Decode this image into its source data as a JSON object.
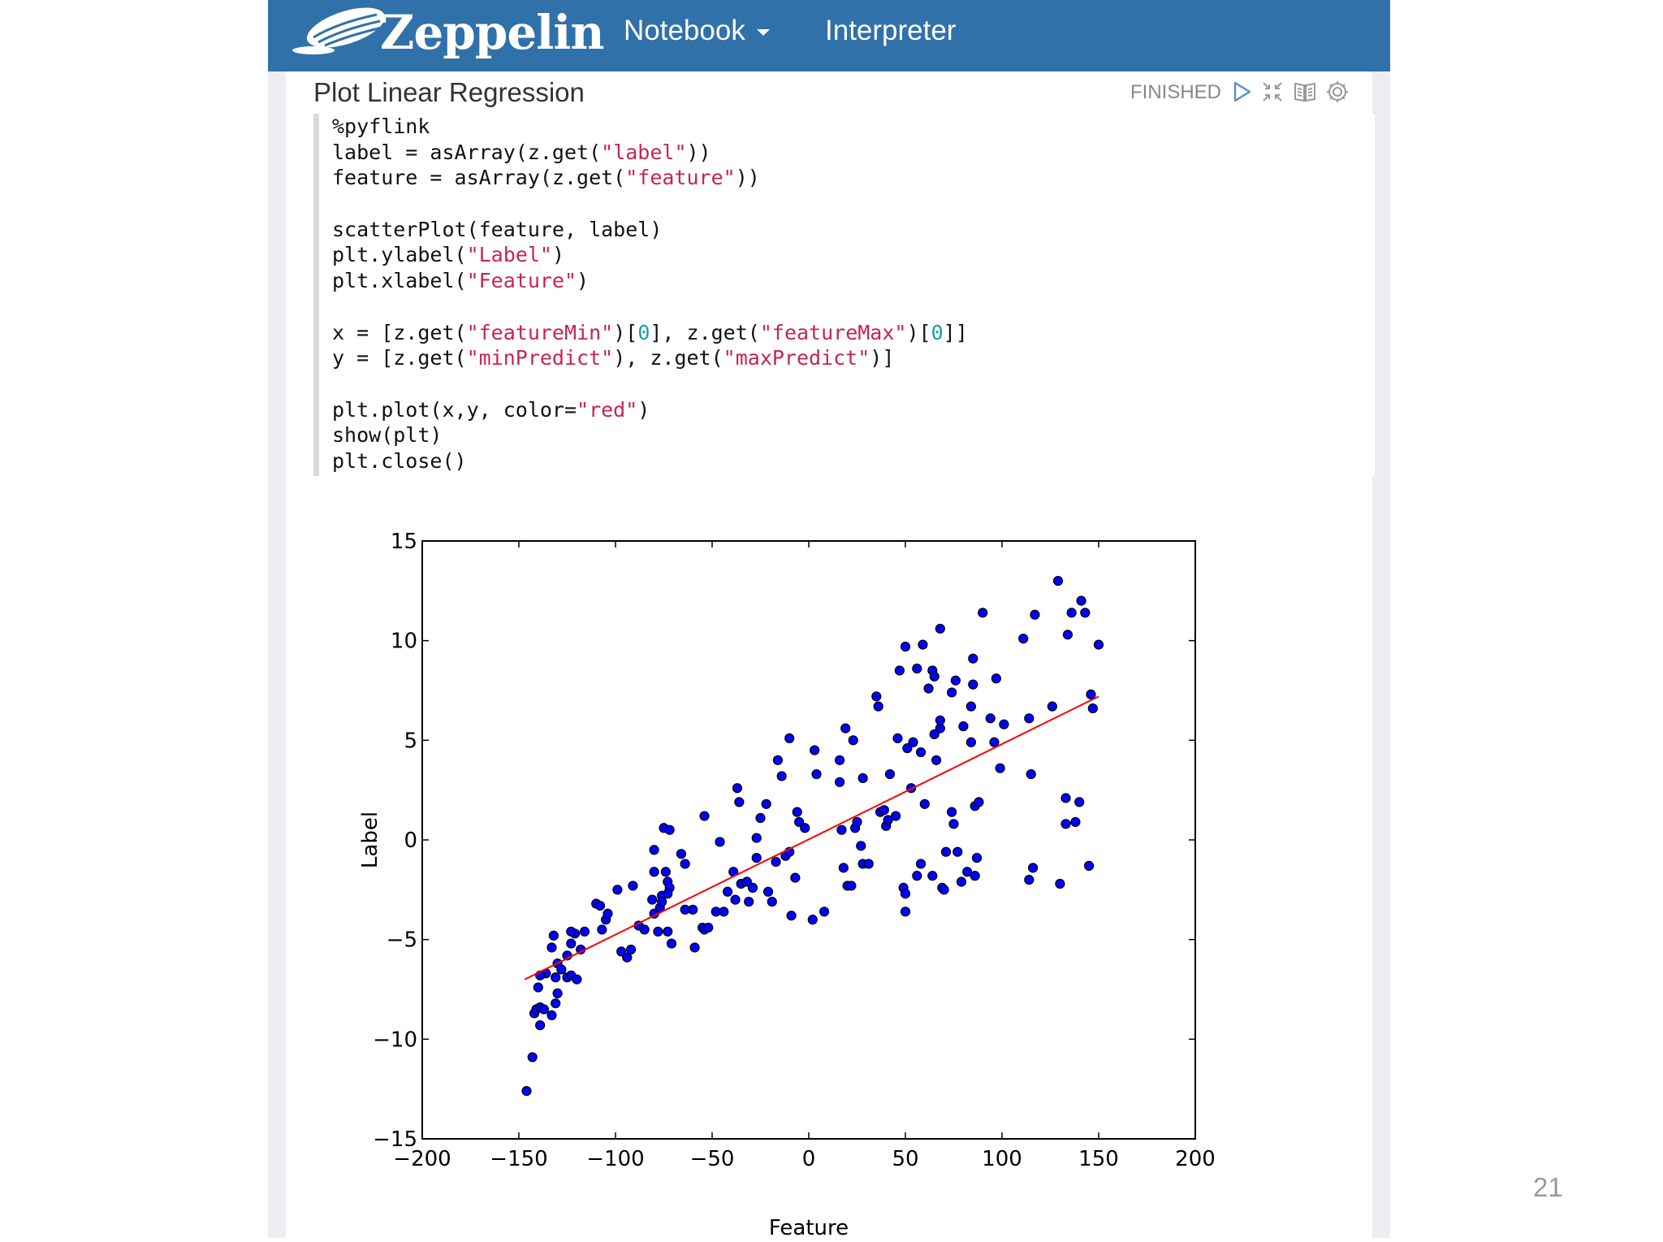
{
  "navbar": {
    "brand": "Zeppelin",
    "menu_notebook": "Notebook",
    "menu_interpreter": "Interpreter"
  },
  "paragraph": {
    "title": "Plot Linear Regression",
    "status": "FINISHED",
    "icons": [
      "run-icon",
      "hide-editor-icon",
      "book-icon",
      "gear-icon"
    ]
  },
  "code": [
    [
      {
        "t": "%pyflink"
      }
    ],
    [
      {
        "t": "label = asArray(z.get("
      },
      {
        "t": "\"label\"",
        "c": "str"
      },
      {
        "t": "))"
      }
    ],
    [
      {
        "t": "feature = asArray(z.get("
      },
      {
        "t": "\"feature\"",
        "c": "str"
      },
      {
        "t": "))"
      }
    ],
    [],
    [
      {
        "t": "scatterPlot(feature, label)"
      }
    ],
    [
      {
        "t": "plt.ylabel("
      },
      {
        "t": "\"Label\"",
        "c": "str"
      },
      {
        "t": ")"
      }
    ],
    [
      {
        "t": "plt.xlabel("
      },
      {
        "t": "\"Feature\"",
        "c": "str"
      },
      {
        "t": ")"
      }
    ],
    [],
    [
      {
        "t": "x = [z.get("
      },
      {
        "t": "\"featureMin\"",
        "c": "str"
      },
      {
        "t": ")["
      },
      {
        "t": "0",
        "c": "num"
      },
      {
        "t": "], z.get("
      },
      {
        "t": "\"featureMax\"",
        "c": "str"
      },
      {
        "t": ")["
      },
      {
        "t": "0",
        "c": "num"
      },
      {
        "t": "]]"
      }
    ],
    [
      {
        "t": "y = [z.get("
      },
      {
        "t": "\"minPredict\"",
        "c": "str"
      },
      {
        "t": "), z.get("
      },
      {
        "t": "\"maxPredict\"",
        "c": "str"
      },
      {
        "t": ")]"
      }
    ],
    [],
    [
      {
        "t": "plt.plot(x,y, color="
      },
      {
        "t": "\"red\"",
        "c": "str"
      },
      {
        "t": ")"
      }
    ],
    [
      {
        "t": "show(plt)"
      }
    ],
    [
      {
        "t": "plt.close()"
      }
    ]
  ],
  "chart_data": {
    "type": "scatter",
    "title": "",
    "xlabel": "Feature",
    "ylabel": "Label",
    "xlim": [
      -200,
      200
    ],
    "ylim": [
      -15,
      15
    ],
    "xticks": [
      -200,
      -150,
      -100,
      -50,
      0,
      50,
      100,
      150,
      200
    ],
    "yticks": [
      -15,
      -10,
      -5,
      0,
      5,
      10,
      15
    ],
    "tick_labels_x": [
      "−200",
      "−150",
      "−100",
      "−50",
      "0",
      "50",
      "100",
      "150",
      "200"
    ],
    "tick_labels_y": [
      "−15",
      "−10",
      "−5",
      "0",
      "5",
      "10",
      "15"
    ],
    "marker_color": "#0000ff",
    "line_color": "#ff0000",
    "series": [
      {
        "name": "points",
        "points": [
          [
            -146,
            -12.6
          ],
          [
            -143,
            -10.9
          ],
          [
            -142,
            -8.7
          ],
          [
            -141,
            -8.5
          ],
          [
            -139,
            -9.3
          ],
          [
            -139,
            -8.4
          ],
          [
            -140,
            -7.4
          ],
          [
            -137,
            -8.5
          ],
          [
            -136,
            -6.7
          ],
          [
            -139,
            -6.8
          ],
          [
            -133,
            -8.8
          ],
          [
            -131,
            -8.2
          ],
          [
            -130,
            -7.7
          ],
          [
            -131,
            -6.9
          ],
          [
            -133,
            -5.4
          ],
          [
            -132,
            -4.8
          ],
          [
            -130,
            -6.2
          ],
          [
            -128,
            -6.5
          ],
          [
            -125,
            -5.8
          ],
          [
            -123,
            -5.2
          ],
          [
            -121,
            -4.7
          ],
          [
            -123,
            -4.6
          ],
          [
            -125,
            -6.9
          ],
          [
            -123,
            -6.8
          ],
          [
            -120,
            -7.0
          ],
          [
            -118,
            -5.5
          ],
          [
            -116,
            -4.6
          ],
          [
            -110,
            -3.2
          ],
          [
            -108,
            -3.3
          ],
          [
            -107,
            -4.5
          ],
          [
            -105,
            -4.0
          ],
          [
            -104,
            -3.7
          ],
          [
            -99,
            -2.5
          ],
          [
            -97,
            -5.6
          ],
          [
            -94,
            -5.9
          ],
          [
            -92,
            -5.5
          ],
          [
            -91,
            -2.3
          ],
          [
            -88,
            -4.3
          ],
          [
            -85,
            -4.5
          ],
          [
            -81,
            -3.0
          ],
          [
            -80,
            -3.7
          ],
          [
            -78,
            -4.6
          ],
          [
            -80,
            -0.5
          ],
          [
            -80,
            -1.6
          ],
          [
            -77,
            -3.4
          ],
          [
            -76,
            -2.8
          ],
          [
            -76,
            -3.1
          ],
          [
            -74,
            -1.6
          ],
          [
            -73,
            -2.1
          ],
          [
            -72,
            -2.4
          ],
          [
            -73,
            -2.7
          ],
          [
            -73,
            -4.6
          ],
          [
            -71,
            -5.2
          ],
          [
            -75,
            0.6
          ],
          [
            -72,
            0.5
          ],
          [
            -66,
            -0.7
          ],
          [
            -64,
            -1.2
          ],
          [
            -64,
            -3.5
          ],
          [
            -60,
            -3.5
          ],
          [
            -59,
            -5.4
          ],
          [
            -54,
            1.2
          ],
          [
            -55,
            -4.4
          ],
          [
            -54,
            -4.5
          ],
          [
            -52,
            -4.4
          ],
          [
            -48,
            -3.6
          ],
          [
            -46,
            -0.1
          ],
          [
            -44,
            -3.6
          ],
          [
            -42,
            -2.6
          ],
          [
            -39,
            -1.6
          ],
          [
            -38,
            -3.0
          ],
          [
            -37,
            2.6
          ],
          [
            -36,
            1.9
          ],
          [
            -35,
            -2.2
          ],
          [
            -32,
            -2.1
          ],
          [
            -31,
            -3.1
          ],
          [
            -29,
            -2.4
          ],
          [
            -27,
            -0.9
          ],
          [
            -27,
            0.1
          ],
          [
            -25,
            1.1
          ],
          [
            -22,
            1.8
          ],
          [
            -21,
            -2.6
          ],
          [
            -19,
            -3.1
          ],
          [
            -17,
            -1.1
          ],
          [
            -16,
            4.0
          ],
          [
            -14,
            3.2
          ],
          [
            -12,
            -0.8
          ],
          [
            -10,
            5.1
          ],
          [
            -10,
            -0.6
          ],
          [
            -9,
            -3.8
          ],
          [
            -7,
            -1.9
          ],
          [
            -6,
            1.4
          ],
          [
            -5,
            0.9
          ],
          [
            -2,
            0.6
          ],
          [
            2,
            -4.0
          ],
          [
            3,
            4.5
          ],
          [
            4,
            3.3
          ],
          [
            8,
            -3.6
          ],
          [
            16,
            4.0
          ],
          [
            16,
            2.9
          ],
          [
            17,
            0.5
          ],
          [
            18,
            -1.4
          ],
          [
            19,
            5.6
          ],
          [
            20,
            -2.3
          ],
          [
            22,
            -2.3
          ],
          [
            23,
            5.0
          ],
          [
            24,
            0.6
          ],
          [
            25,
            0.9
          ],
          [
            27,
            -0.3
          ],
          [
            28,
            3.1
          ],
          [
            28,
            -1.2
          ],
          [
            31,
            -1.2
          ],
          [
            35,
            7.2
          ],
          [
            36,
            6.7
          ],
          [
            37,
            1.4
          ],
          [
            39,
            1.5
          ],
          [
            40,
            0.7
          ],
          [
            41,
            1.0
          ],
          [
            42,
            3.3
          ],
          [
            45,
            1.2
          ],
          [
            46,
            5.1
          ],
          [
            47,
            8.5
          ],
          [
            50,
            9.7
          ],
          [
            49,
            -2.4
          ],
          [
            50,
            -2.7
          ],
          [
            51,
            4.6
          ],
          [
            50,
            -3.6
          ],
          [
            53,
            2.6
          ],
          [
            54,
            4.9
          ],
          [
            56,
            8.6
          ],
          [
            56,
            -1.8
          ],
          [
            58,
            -1.2
          ],
          [
            58,
            4.4
          ],
          [
            59,
            9.8
          ],
          [
            60,
            1.8
          ],
          [
            62,
            7.6
          ],
          [
            64,
            8.5
          ],
          [
            65,
            8.2
          ],
          [
            65,
            5.3
          ],
          [
            64,
            -1.8
          ],
          [
            66,
            4.0
          ],
          [
            68,
            5.6
          ],
          [
            68,
            6.0
          ],
          [
            68,
            10.6
          ],
          [
            69,
            -2.4
          ],
          [
            70,
            -2.5
          ],
          [
            71,
            -0.6
          ],
          [
            74,
            7.4
          ],
          [
            74,
            1.4
          ],
          [
            75,
            0.8
          ],
          [
            76,
            8.0
          ],
          [
            77,
            -0.6
          ],
          [
            79,
            -2.1
          ],
          [
            80,
            5.7
          ],
          [
            82,
            -1.6
          ],
          [
            84,
            4.9
          ],
          [
            84,
            6.7
          ],
          [
            85,
            9.1
          ],
          [
            86,
            -1.8
          ],
          [
            85,
            7.8
          ],
          [
            86,
            1.7
          ],
          [
            87,
            -0.9
          ],
          [
            88,
            1.9
          ],
          [
            90,
            11.4
          ],
          [
            94,
            6.1
          ],
          [
            96,
            4.9
          ],
          [
            97,
            8.1
          ],
          [
            99,
            3.6
          ],
          [
            101,
            5.8
          ],
          [
            111,
            10.1
          ],
          [
            114,
            6.1
          ],
          [
            115,
            3.3
          ],
          [
            116,
            -1.4
          ],
          [
            114,
            -2.0
          ],
          [
            117,
            11.3
          ],
          [
            126,
            6.7
          ],
          [
            129,
            13.0
          ],
          [
            130,
            -2.2
          ],
          [
            133,
            2.1
          ],
          [
            133,
            0.8
          ],
          [
            134,
            10.3
          ],
          [
            136,
            11.4
          ],
          [
            138,
            0.9
          ],
          [
            140,
            1.9
          ],
          [
            141,
            12.0
          ],
          [
            143,
            11.4
          ],
          [
            145,
            -1.3
          ],
          [
            146,
            7.3
          ],
          [
            147,
            6.6
          ],
          [
            150,
            9.8
          ]
        ]
      },
      {
        "name": "regression",
        "points": [
          [
            -147,
            -7.0
          ],
          [
            150,
            7.2
          ]
        ]
      }
    ]
  },
  "page_number": "21"
}
